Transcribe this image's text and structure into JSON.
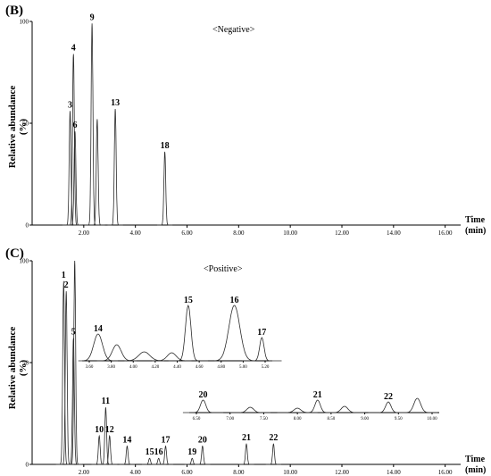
{
  "chart_data": [
    {
      "panel": "(B)",
      "mode": "<Negative>",
      "type": "line",
      "xlabel": "Time (min)",
      "ylabel": "Relative abundance (%)",
      "xlim": [
        0,
        16.6
      ],
      "ylim": [
        0,
        100
      ],
      "xticks": [
        "2.00",
        "4.00",
        "6.00",
        "8.00",
        "10.00",
        "12.00",
        "14.00",
        "16.00"
      ],
      "yticks": [
        "0",
        "50",
        "100"
      ],
      "peaks": [
        {
          "label": "3",
          "x": 1.47,
          "y": 56
        },
        {
          "label": "4",
          "x": 1.6,
          "y": 84
        },
        {
          "label": "6",
          "x": 1.66,
          "y": 46
        },
        {
          "label": "9",
          "x": 2.32,
          "y": 99
        },
        {
          "label": "",
          "x": 2.52,
          "y": 52
        },
        {
          "label": "13",
          "x": 3.22,
          "y": 57
        },
        {
          "label": "18",
          "x": 5.14,
          "y": 36
        }
      ]
    },
    {
      "panel": "(C)",
      "mode": "<Positive>",
      "type": "line",
      "xlabel": "Time (min)",
      "ylabel": "Relative abundance (%)",
      "xlim": [
        0,
        16.6
      ],
      "ylim": [
        0,
        100
      ],
      "xticks": [
        "2.00",
        "4.00",
        "6.00",
        "8.00",
        "10.00",
        "12.00",
        "14.00",
        "16.00"
      ],
      "yticks": [
        "0",
        "50",
        "100"
      ],
      "peaks": [
        {
          "label": "1",
          "x": 1.22,
          "y": 90
        },
        {
          "label": "2",
          "x": 1.32,
          "y": 85
        },
        {
          "label": "5",
          "x": 1.6,
          "y": 62
        },
        {
          "label": "",
          "x": 1.65,
          "y": 100
        },
        {
          "label": "11",
          "x": 2.85,
          "y": 28
        },
        {
          "label": "10",
          "x": 2.6,
          "y": 14
        },
        {
          "label": "12",
          "x": 3.0,
          "y": 14
        },
        {
          "label": "14",
          "x": 3.68,
          "y": 9
        },
        {
          "label": "15",
          "x": 4.55,
          "y": 3
        },
        {
          "label": "16",
          "x": 4.9,
          "y": 3
        },
        {
          "label": "17",
          "x": 5.17,
          "y": 9
        },
        {
          "label": "19",
          "x": 6.2,
          "y": 3
        },
        {
          "label": "20",
          "x": 6.6,
          "y": 9
        },
        {
          "label": "21",
          "x": 8.3,
          "y": 10
        },
        {
          "label": "22",
          "x": 9.35,
          "y": 10
        }
      ],
      "inset1": {
        "xticks": [
          "3.60",
          "3.80",
          "4.00",
          "4.20",
          "4.40",
          "4.60",
          "4.80",
          "5.00",
          "5.20"
        ],
        "peak_labels": [
          "14",
          "15",
          "16",
          "17"
        ]
      },
      "inset2": {
        "xticks": [
          "6.50",
          "7.00",
          "7.50",
          "8.00",
          "8.50",
          "9.00",
          "9.50",
          "10.00"
        ],
        "peak_labels": [
          "20",
          "21",
          "22"
        ]
      }
    }
  ]
}
